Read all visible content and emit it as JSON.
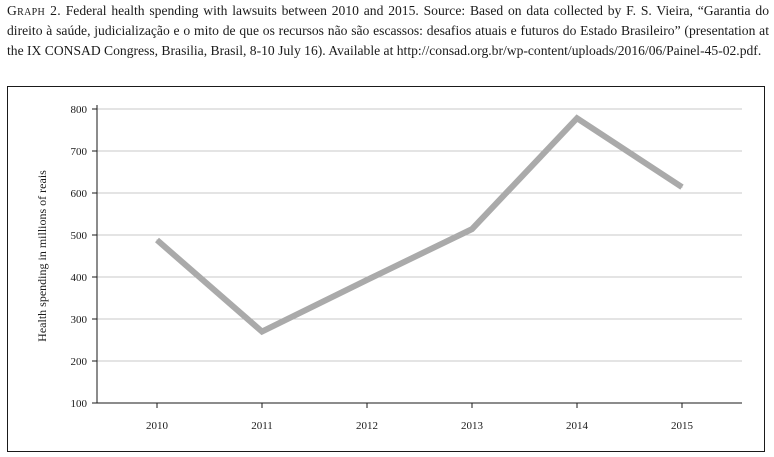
{
  "caption": {
    "label": "Graph 2.",
    "text": "Federal health spending with lawsuits between 2010 and 2015. Source: Based on data collected by F. S. Vieira, “Garantia do direito à saúde, judicialização e o mito de que os recursos não são escassos: desafios atuais e futuros do Estado Brasileiro” (presentation at the IX CONSAD Congress, Brasilia, Brasil, 8-10 July 16). Available at http://consad.org.br/wp-content/uploads/2016/06/Painel-45-02.pdf."
  },
  "chart_data": {
    "type": "line",
    "title": "",
    "xlabel": "",
    "ylabel": "Health spending in millions of reais",
    "categories": [
      "2010",
      "2011",
      "2012",
      "2013",
      "2014",
      "2015"
    ],
    "series": [
      {
        "values": [
          488,
          270,
          393,
          514,
          778,
          614
        ]
      }
    ],
    "ylim": [
      100,
      800
    ],
    "yticks": [
      100,
      200,
      300,
      400,
      500,
      600,
      700,
      800
    ],
    "grid": "horizontal",
    "colors": {
      "line": "#aaaaaa",
      "grid": "#c8c8c8",
      "axis": "#1a1a1a"
    }
  }
}
